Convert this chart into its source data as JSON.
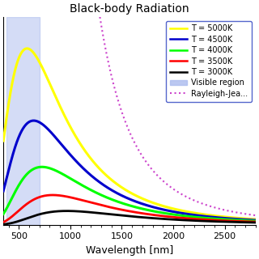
{
  "title": "Black-body Radiation",
  "xlabel": "Wavelength [nm]",
  "xlim": [
    350,
    2800
  ],
  "visible_region": [
    380,
    700
  ],
  "visible_color": "#aabbee",
  "visible_alpha": 0.5,
  "temperatures": [
    5000,
    4500,
    4000,
    3500,
    3000
  ],
  "colors": [
    "yellow",
    "#0000cc",
    "lime",
    "red",
    "black"
  ],
  "line_widths": [
    2.2,
    2.2,
    2.2,
    2.0,
    2.0
  ],
  "rayleigh_color": "#cc44cc",
  "rayleigh_T": 5000,
  "legend_fontsize": 7.0,
  "title_fontsize": 10,
  "xlabel_fontsize": 9,
  "tick_fontsize": 8,
  "xticks": [
    500,
    1000,
    1500,
    2000,
    2500
  ],
  "background_color": "#ffffff"
}
